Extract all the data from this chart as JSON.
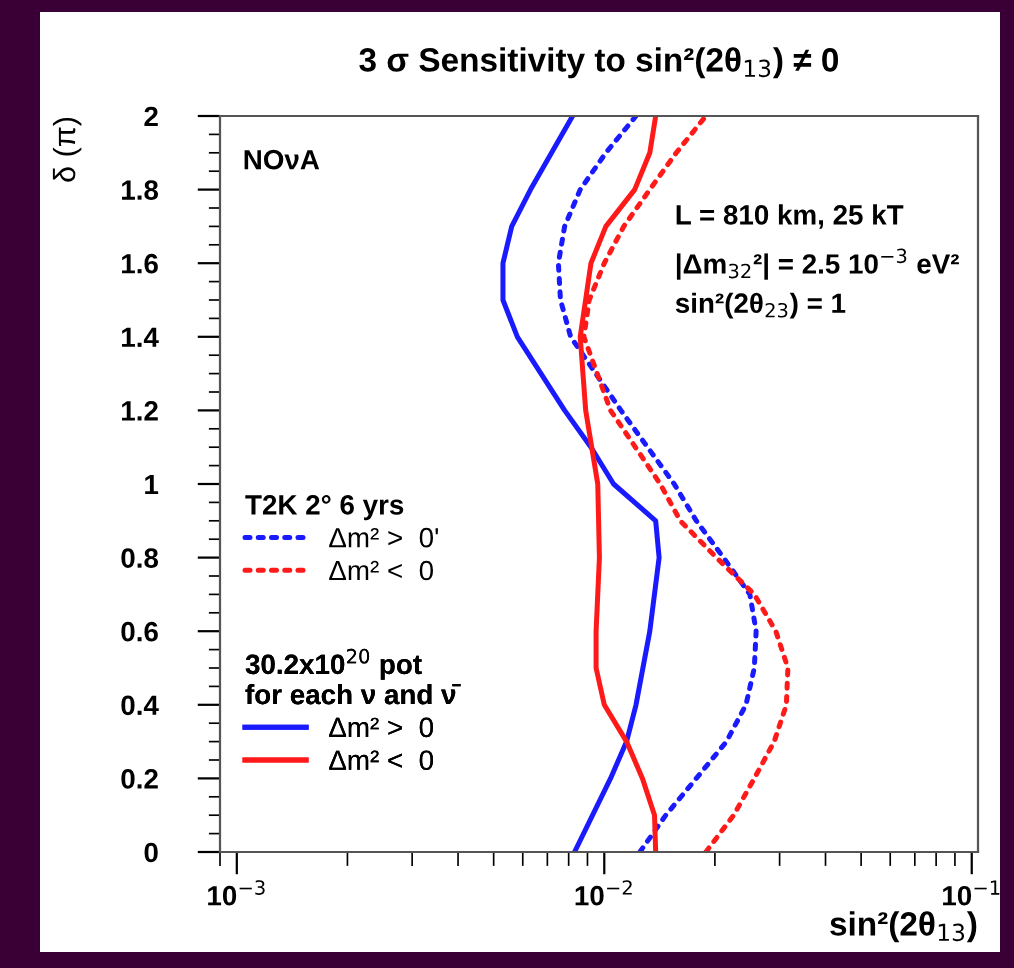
{
  "chart_data": {
    "type": "line",
    "title": "3 σ Sensitivity to sin²(2θ$_{13}$) ≠ 0",
    "xlabel": "sin²(2θ$_{13}$)",
    "ylabel": "δ (π)",
    "log": "x",
    "xlim": [
      0.0009,
      0.104
    ],
    "xticks": [
      {
        "value": 0.001,
        "label": "10$^{−3}$"
      },
      {
        "value": 0.01,
        "label": "10$^{−2}$"
      },
      {
        "value": 0.1,
        "label": "10$^{−1}$"
      }
    ],
    "ylim": [
      0,
      2
    ],
    "yticks": [
      0,
      0.2,
      0.4,
      0.6,
      0.8,
      1,
      1.2,
      1.4,
      1.6,
      1.8,
      2
    ],
    "grid": false,
    "legend": "left",
    "annotations": [
      "NOνA",
      "L = 810 km, 25 kT",
      "|Δm$_{32}$²| = 2.5 10$^{−3}$ eV²",
      "sin²(2θ$_{23}$) = 1",
      "T2K 2° 6 yrs",
      "30.2x10$^{20}$ pot",
      "for each ν and ν̄"
    ],
    "series": [
      {
        "name": "Δm² >  0'",
        "color": "#1a1aff",
        "line_style": "dotted",
        "x": [
          0.0125,
          0.0147,
          0.0178,
          0.0215,
          0.0243,
          0.0256,
          0.0259,
          0.0249,
          0.0211,
          0.0178,
          0.0155,
          0.0111,
          0.0081,
          0.0076,
          0.0075,
          0.0078,
          0.0086,
          0.0101,
          0.0122
        ],
        "values": [
          0,
          0.1,
          0.2,
          0.3,
          0.4,
          0.5,
          0.6,
          0.7,
          0.8,
          0.9,
          1.0,
          1.2,
          1.4,
          1.5,
          1.6,
          1.7,
          1.8,
          1.9,
          2.0
        ]
      },
      {
        "name": "Δm² <  0",
        "color": "#ff1a1a",
        "line_style": "dotted",
        "x": [
          0.0189,
          0.0225,
          0.0256,
          0.029,
          0.0313,
          0.0316,
          0.0293,
          0.0256,
          0.0202,
          0.0161,
          0.0142,
          0.0104,
          0.0088,
          0.0091,
          0.01,
          0.0113,
          0.0133,
          0.0157,
          0.0189
        ],
        "values": [
          0,
          0.1,
          0.2,
          0.3,
          0.4,
          0.5,
          0.6,
          0.7,
          0.8,
          0.9,
          1.0,
          1.2,
          1.4,
          1.5,
          1.6,
          1.7,
          1.8,
          1.9,
          2.0
        ]
      },
      {
        "name": "Δm² >  0",
        "color": "#1a1aff",
        "line_style": "solid",
        "x": [
          0.0083,
          0.0104,
          0.0115,
          0.0122,
          0.0133,
          0.0141,
          0.0138,
          0.0106,
          0.0092,
          0.0078,
          0.0058,
          0.0053,
          0.0053,
          0.0056,
          0.0063,
          0.0082
        ],
        "values": [
          0,
          0.2,
          0.3,
          0.4,
          0.6,
          0.8,
          0.9,
          1.0,
          1.1,
          1.2,
          1.4,
          1.5,
          1.6,
          1.7,
          1.8,
          2.0
        ]
      },
      {
        "name": "Δm² <  0",
        "color": "#ff1a1a",
        "line_style": "solid",
        "x": [
          0.0138,
          0.0137,
          0.0127,
          0.0115,
          0.01,
          0.0095,
          0.0095,
          0.0097,
          0.0096,
          0.0089,
          0.0086,
          0.0092,
          0.0101,
          0.0121,
          0.0133,
          0.0138
        ],
        "values": [
          0,
          0.1,
          0.2,
          0.3,
          0.4,
          0.5,
          0.6,
          0.8,
          1.0,
          1.2,
          1.4,
          1.6,
          1.7,
          1.8,
          1.9,
          2.0
        ]
      }
    ]
  }
}
